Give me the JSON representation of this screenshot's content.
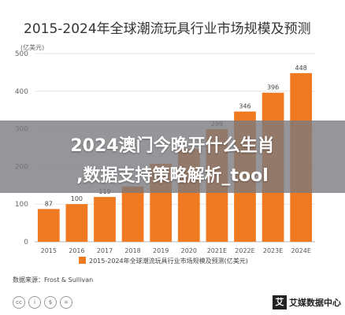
{
  "chart_data": {
    "type": "bar",
    "title": "2015-2024年全球潮流玩具行业市场规模及预测",
    "unit_label": "(亿美元)",
    "categories": [
      "2015",
      "2016",
      "2017",
      "2018",
      "2019",
      "2020",
      "2021E",
      "2022E",
      "2023E",
      "2024E"
    ],
    "values": [
      87,
      100,
      119,
      147,
      207,
      247,
      299,
      346,
      396,
      448
    ],
    "data_labels": [
      "87",
      "100",
      "119",
      "",
      "",
      "",
      "299",
      "346",
      "396",
      "448"
    ],
    "ylim": [
      0,
      500
    ],
    "y_ticks": [
      "0",
      "100",
      "200",
      "300",
      "400",
      "500"
    ],
    "grid": true,
    "legend_label": "2015-2024年全球潮流玩具行业市场规模及预测(亿美元)",
    "legend_position": "bottom",
    "bar_color": "#F07A22"
  },
  "overlay": {
    "line1": "2024澳门今晚开什么生肖",
    "line2": ",数据支持策略解析_tool"
  },
  "footer": {
    "source": "数据来源：Frost & Sullivan",
    "logo_mark": "艾",
    "logo_text": "艾媒数据中心"
  }
}
